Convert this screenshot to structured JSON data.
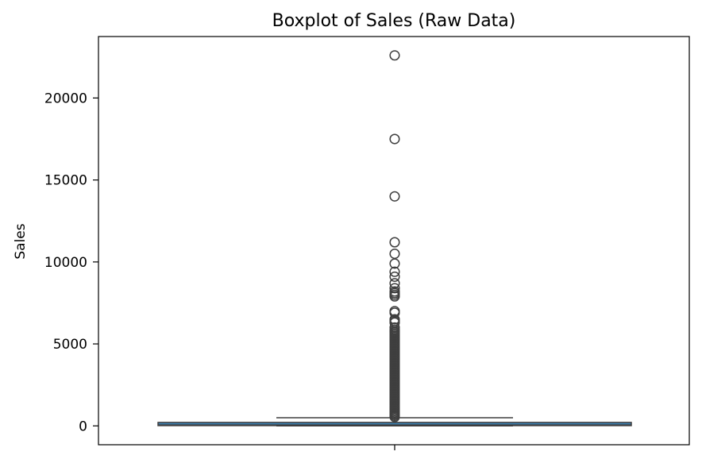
{
  "chart_data": {
    "type": "box",
    "title": "Boxplot of Sales (Raw Data)",
    "xlabel": "",
    "ylabel": "Sales",
    "ylim": [
      -1150,
      23750
    ],
    "yticks": [
      0,
      5000,
      10000,
      15000,
      20000
    ],
    "ytick_labels": [
      "0",
      "5000",
      "10000",
      "15000",
      "20000"
    ],
    "grid": false,
    "box": {
      "q1": 17,
      "median": 54,
      "q3": 210,
      "whisker_low": 0.4,
      "whisker_high": 500,
      "fill_color": "#3a7fb0",
      "line_color": "#3f3f3f"
    },
    "outliers_dense_range": [
      520,
      5700
    ],
    "outliers": [
      5750,
      5850,
      6000,
      6300,
      6400,
      6500,
      6900,
      7000,
      7900,
      8000,
      8100,
      8200,
      8400,
      8700,
      9100,
      9400,
      9900,
      10500,
      11200,
      14000,
      17500,
      22600
    ]
  }
}
